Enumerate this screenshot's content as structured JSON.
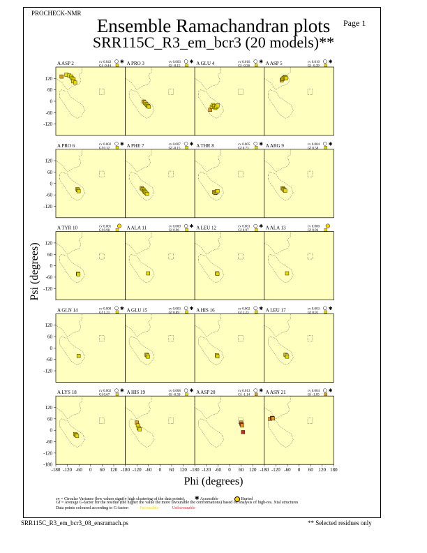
{
  "header_tag": "PROCHECK-NMR",
  "page_label": "Page  1",
  "title": "Ensemble Ramachandran plots",
  "subtitle": "SRR115C_R3_em_bcr3 (20 models)**",
  "ylabel": "Psi (degrees)",
  "xlabel": "Phi (degrees)",
  "legend": {
    "cv_text": "cv = Circular Variance (low values signify high clustering of the data points).",
    "accessible": "Accessible",
    "buried": "Buried",
    "gf_text": "Gf = Average G-factor for the residue (the higher the value the more favourable the conformations) based on analysis of high-res. Xtal structures",
    "colour_text": "Data points coloured according to G-factor:",
    "favourable": "Favourable",
    "unfavourable": "Unfavourable"
  },
  "footer_file": "SRR115C_R3_em_bcr3_08_ensramach.ps",
  "footer_note": "** Selected residues only",
  "colors": {
    "panel_bg": "#ffffc0",
    "favourable": "#e8d800",
    "unfavourable": "#c0301c",
    "mid": "#e09a20",
    "fav_swatch": "#ffd700",
    "unfav_swatch": "#e03030"
  },
  "chart_data": {
    "type": "scatter",
    "xlim": [
      -180,
      180
    ],
    "ylim": [
      -180,
      180
    ],
    "yticks": [
      "120",
      "60",
      "0",
      "-60",
      "-120"
    ],
    "xticks": [
      "-180",
      "-120",
      "-60",
      "0",
      "60",
      "120",
      "180"
    ],
    "panels": [
      {
        "label": "A ASP 2",
        "cv": "cv 0.043",
        "gf": "Gf -0.44",
        "access": "buried-q",
        "gfbox": "fav",
        "x": [
          -150,
          -125,
          -110,
          -100,
          -95,
          -88,
          -90,
          -80
        ],
        "y": [
          130,
          140,
          135,
          130,
          120,
          115,
          105,
          98
        ]
      },
      {
        "label": "A PRO 3",
        "cv": "cv 0.003",
        "gf": "Gf -0.15",
        "access": "star",
        "gfbox": "fav",
        "x": [
          -85,
          -78,
          -72,
          -68,
          -62,
          -58
        ],
        "y": [
          -2,
          -8,
          -15,
          -20,
          -25,
          -28
        ]
      },
      {
        "label": "A GLU 4",
        "cv": "cv 0.016",
        "gf": "Gf -0.36",
        "access": "star",
        "gfbox": "fav",
        "x": [
          -100,
          -92,
          -85,
          -80,
          -74,
          -68,
          -62
        ],
        "y": [
          -45,
          -30,
          -20,
          -25,
          -35,
          -30,
          -22
        ]
      },
      {
        "label": "A ASP 5",
        "cv": "cv 0.010",
        "gf": "Gf -0.39",
        "access": "star",
        "gfbox": "fav",
        "x": [
          -90,
          -85,
          -80,
          -75,
          -72,
          -68
        ],
        "y": [
          110,
          118,
          122,
          128,
          125,
          120
        ]
      },
      {
        "label": "A PRO 6",
        "cv": "cv 0.002",
        "gf": "Gf 0.32",
        "access": "buried-q",
        "gfbox": "fav",
        "x": [
          -68,
          -65,
          -62
        ],
        "y": [
          -30,
          -35,
          -40
        ]
      },
      {
        "label": "A PHE 7",
        "cv": "cv 0.007",
        "gf": "Gf -0.15",
        "access": "buried-q",
        "gfbox": "fav",
        "x": [
          -95,
          -90,
          -85,
          -82,
          -78,
          -72,
          -68
        ],
        "y": [
          -25,
          -30,
          -35,
          -40,
          -45,
          -50,
          -55
        ]
      },
      {
        "label": "A THR 8",
        "cv": "cv 0.005",
        "gf": "Gf 0.73",
        "access": "buried-q",
        "gfbox": "fav",
        "x": [
          -80,
          -75,
          -70,
          -66,
          -62
        ],
        "y": [
          -45,
          -50,
          -48,
          -42,
          -40
        ]
      },
      {
        "label": "A ARG 9",
        "cv": "cv 0.004",
        "gf": "Gf 0.58",
        "access": "buried-q",
        "gfbox": "fav",
        "x": [
          -85,
          -80,
          -76,
          -72
        ],
        "y": [
          -25,
          -30,
          -35,
          -38
        ]
      },
      {
        "label": "A TYR 10",
        "cv": "cv 0.001",
        "gf": "Gf 0.98",
        "access": "buried",
        "gfbox": "fav",
        "x": [
          -65,
          -63
        ],
        "y": [
          -42,
          -45
        ]
      },
      {
        "label": "A ALA 11",
        "cv": "cv 0.000",
        "gf": "Gf 0.96",
        "access": "star",
        "gfbox": "fav",
        "x": [
          -62
        ],
        "y": [
          -40
        ]
      },
      {
        "label": "A LEU 12",
        "cv": "cv 0.001",
        "gf": "Gf 0.97",
        "access": "star",
        "gfbox": "fav",
        "x": [
          -65,
          -63
        ],
        "y": [
          -40,
          -43
        ]
      },
      {
        "label": "A ALA 13",
        "cv": "cv 0.000",
        "gf": "Gf 0.96",
        "access": "buried",
        "gfbox": "fav",
        "x": [
          -62
        ],
        "y": [
          -40
        ]
      },
      {
        "label": "A GLN 14",
        "cv": "cv 0.000",
        "gf": "Gf 1.21",
        "access": "star",
        "gfbox": "fav",
        "x": [
          -62
        ],
        "y": [
          -42
        ]
      },
      {
        "label": "A GLU 15",
        "cv": "cv 0.003",
        "gf": "Gf 0.89",
        "access": "star",
        "gfbox": "fav",
        "x": [
          -70,
          -66,
          -63
        ],
        "y": [
          -35,
          -40,
          -45
        ]
      },
      {
        "label": "A HIS 16",
        "cv": "cv 0.002",
        "gf": "Gf 1.23",
        "access": "star",
        "gfbox": "fav",
        "x": [
          -66,
          -63
        ],
        "y": [
          -38,
          -44
        ]
      },
      {
        "label": "A LEU 17",
        "cv": "cv 0.003",
        "gf": "Gf 0.91",
        "access": "star",
        "gfbox": "fav",
        "x": [
          -70,
          -65,
          -62
        ],
        "y": [
          -35,
          -40,
          -45
        ]
      },
      {
        "label": "A LYS 18",
        "cv": "cv 0.002",
        "gf": "Gf 0.67",
        "access": "buried-q",
        "gfbox": "fav",
        "x": [
          -80,
          -75,
          -70
        ],
        "y": [
          -20,
          -25,
          -30
        ]
      },
      {
        "label": "A HIS 19",
        "cv": "cv 0.008",
        "gf": "Gf -0.58",
        "access": "star",
        "gfbox": "fav",
        "x": [
          -120,
          -115,
          -110,
          -105
        ],
        "y": [
          40,
          25,
          10,
          5
        ]
      },
      {
        "label": "A ASP 20",
        "cv": "cv 0.013",
        "gf": "Gf -1.14",
        "access": "star",
        "gfbox": "mid",
        "x": [
          60,
          62,
          65,
          70
        ],
        "y": [
          40,
          32,
          25,
          -10
        ]
      },
      {
        "label": "A ASN 21",
        "cv": "cv 0.004",
        "gf": "Gf -1.05",
        "access": "star",
        "gfbox": "mid",
        "x": [
          -150,
          -140,
          -135
        ],
        "y": [
          60,
          65,
          62
        ]
      }
    ]
  }
}
